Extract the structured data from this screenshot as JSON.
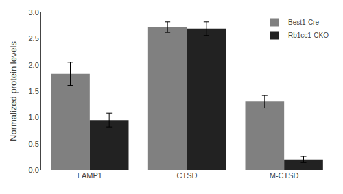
{
  "chart_data": {
    "type": "bar",
    "categories": [
      "LAMP1",
      "CTSD",
      "M-CTSD"
    ],
    "series": [
      {
        "name": "Best1-Cre",
        "color": "#808080",
        "values": [
          1.83,
          2.72,
          1.3
        ],
        "errors": [
          0.22,
          0.1,
          0.12
        ]
      },
      {
        "name": "Rb1cc1-CKO",
        "color": "#222222",
        "values": [
          0.95,
          2.69,
          0.2
        ],
        "errors": [
          0.13,
          0.13,
          0.06
        ]
      }
    ],
    "ylabel": "Normalized protein levels",
    "ylim": [
      0,
      3.0
    ],
    "yticks": [
      {
        "value": 0,
        "label": "0.0"
      },
      0.5,
      {
        "value": 1.0,
        "label": "1.0"
      },
      1.5,
      {
        "value": 2.0,
        "label": "2.0"
      },
      2.5,
      {
        "value": 3.0,
        "label": "3.0"
      }
    ],
    "grid": false,
    "legend": "upper right"
  }
}
